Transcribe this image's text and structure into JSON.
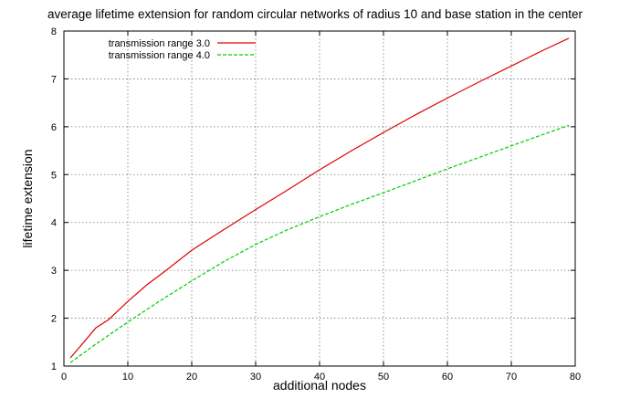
{
  "chart_data": {
    "type": "line",
    "title": "average lifetime extension for random circular networks of radius 10 and base station in the center",
    "xlabel": "additional nodes",
    "ylabel": "lifetime extension",
    "xlim": [
      0,
      80
    ],
    "ylim": [
      1,
      8
    ],
    "xticks": [
      0,
      10,
      20,
      30,
      40,
      50,
      60,
      70,
      80
    ],
    "yticks": [
      1,
      2,
      3,
      4,
      5,
      6,
      7,
      8
    ],
    "grid": true,
    "legend_position": "top-left",
    "series": [
      {
        "name": "transmission range 3.0",
        "color": "#e00000",
        "style": "solid",
        "x": [
          1,
          3,
          5,
          7,
          10,
          13,
          16,
          20,
          25,
          30,
          35,
          40,
          45,
          50,
          55,
          60,
          65,
          70,
          75,
          79
        ],
        "y": [
          1.17,
          1.48,
          1.8,
          1.97,
          2.35,
          2.7,
          3.0,
          3.42,
          3.85,
          4.27,
          4.68,
          5.1,
          5.5,
          5.88,
          6.25,
          6.6,
          6.94,
          7.27,
          7.6,
          7.85
        ]
      },
      {
        "name": "transmission range 4.0",
        "color": "#00cc00",
        "style": "dashed",
        "x": [
          1,
          5,
          10,
          15,
          20,
          25,
          30,
          35,
          40,
          45,
          50,
          55,
          60,
          65,
          70,
          75,
          79
        ],
        "y": [
          1.07,
          1.46,
          1.92,
          2.36,
          2.78,
          3.18,
          3.54,
          3.85,
          4.12,
          4.38,
          4.62,
          4.87,
          5.12,
          5.36,
          5.6,
          5.84,
          6.03
        ]
      }
    ]
  }
}
